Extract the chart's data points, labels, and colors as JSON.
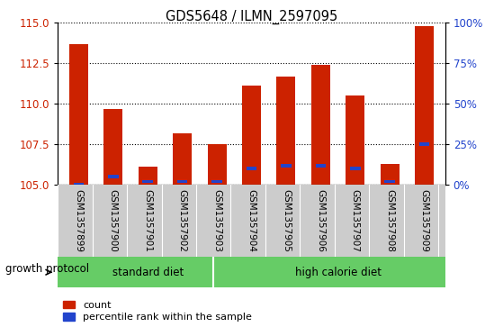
{
  "title": "GDS5648 / ILMN_2597095",
  "samples": [
    "GSM1357899",
    "GSM1357900",
    "GSM1357901",
    "GSM1357902",
    "GSM1357903",
    "GSM1357904",
    "GSM1357905",
    "GSM1357906",
    "GSM1357907",
    "GSM1357908",
    "GSM1357909"
  ],
  "count_values": [
    113.7,
    109.7,
    106.1,
    108.2,
    107.5,
    111.1,
    111.7,
    112.4,
    110.5,
    106.3,
    114.8
  ],
  "percentile_values": [
    0,
    5,
    2,
    2,
    2,
    10,
    12,
    12,
    10,
    2,
    25
  ],
  "ylim_left": [
    105,
    115
  ],
  "ylim_right": [
    0,
    100
  ],
  "yticks_left": [
    105,
    107.5,
    110,
    112.5,
    115
  ],
  "yticks_right": [
    0,
    25,
    50,
    75,
    100
  ],
  "ytick_labels_right": [
    "0%",
    "25%",
    "50%",
    "75%",
    "100%"
  ],
  "bar_color_red": "#CC2200",
  "bar_color_blue": "#2244CC",
  "bar_baseline": 105,
  "standard_diet_indices": [
    0,
    1,
    2,
    3,
    4
  ],
  "high_calorie_diet_indices": [
    5,
    6,
    7,
    8,
    9,
    10
  ],
  "standard_diet_label": "standard diet",
  "high_calorie_diet_label": "high calorie diet",
  "growth_protocol_label": "growth protocol",
  "legend_count_label": "count",
  "legend_percentile_label": "percentile rank within the sample",
  "bar_width": 0.55,
  "grid_color": "black",
  "grid_linestyle": "dotted",
  "grid_linewidth": 0.8,
  "left_tick_color": "#CC2200",
  "right_tick_color": "#2244CC",
  "tick_area_bg": "#CCCCCC",
  "group_area_bg": "#66CC66"
}
